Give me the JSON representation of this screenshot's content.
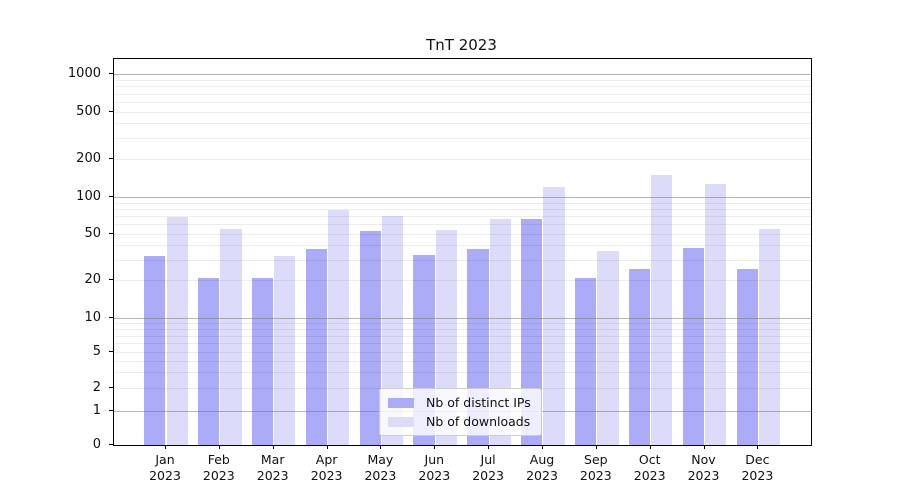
{
  "title": "TnT 2023",
  "legend": {
    "items": [
      {
        "label": "Nb of distinct IPs",
        "color": "#ababf8"
      },
      {
        "label": "Nb of downloads",
        "color": "#dcdcfa"
      }
    ]
  },
  "axes": {
    "ytick_labels": [
      "0",
      "1",
      "2",
      "5",
      "10",
      "20",
      "50",
      "100",
      "200",
      "500",
      "1000"
    ],
    "xtick_year": "2023",
    "months": [
      "Jan",
      "Feb",
      "Mar",
      "Apr",
      "May",
      "Jun",
      "Jul",
      "Aug",
      "Sep",
      "Oct",
      "Nov",
      "Dec"
    ]
  },
  "chart_data": {
    "type": "bar",
    "title": "TnT 2023",
    "categories": [
      "Jan 2023",
      "Feb 2023",
      "Mar 2023",
      "Apr 2023",
      "May 2023",
      "Jun 2023",
      "Jul 2023",
      "Aug 2023",
      "Sep 2023",
      "Oct 2023",
      "Nov 2023",
      "Dec 2023"
    ],
    "series": [
      {
        "name": "Nb of distinct IPs",
        "color": "#ababf8",
        "values": [
          32,
          21,
          21,
          37,
          53,
          33,
          37,
          66,
          21,
          25,
          38,
          25
        ]
      },
      {
        "name": "Nb of downloads",
        "color": "#dcdcfa",
        "values": [
          69,
          55,
          32,
          79,
          70,
          54,
          66,
          120,
          36,
          150,
          128,
          55
        ]
      }
    ],
    "xlabel": "",
    "ylabel": "",
    "yscale": "symlog",
    "yticks": [
      0,
      1,
      2,
      5,
      10,
      20,
      50,
      100,
      200,
      500,
      1000
    ],
    "ylim": [
      0,
      1400
    ],
    "grid": "on",
    "legend_position": "lower center inside"
  }
}
